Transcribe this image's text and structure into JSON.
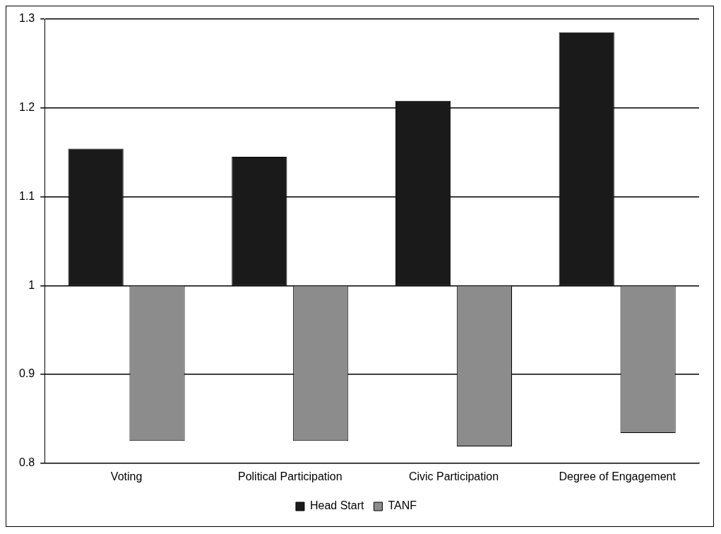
{
  "chart_data": {
    "type": "bar",
    "categories": [
      "Voting",
      "Political Participation",
      "Civic Participation",
      "Degree of Engagement"
    ],
    "series": [
      {
        "name": "Head Start",
        "color": "#1a1a1a",
        "base": [
          1,
          1,
          1,
          1
        ],
        "values": [
          0.154,
          0.145,
          0.208,
          0.285
        ]
      },
      {
        "name": "TANF",
        "color": "#8c8c8c",
        "base": [
          1,
          1,
          1,
          1
        ],
        "values": [
          -0.175,
          -0.175,
          -0.181,
          -0.166
        ]
      }
    ],
    "ylim": [
      0.8,
      1.3
    ],
    "yticks": [
      0.8,
      0.9,
      1,
      1.1,
      1.2,
      1.3
    ],
    "grid": "y",
    "legend": "bottom"
  }
}
